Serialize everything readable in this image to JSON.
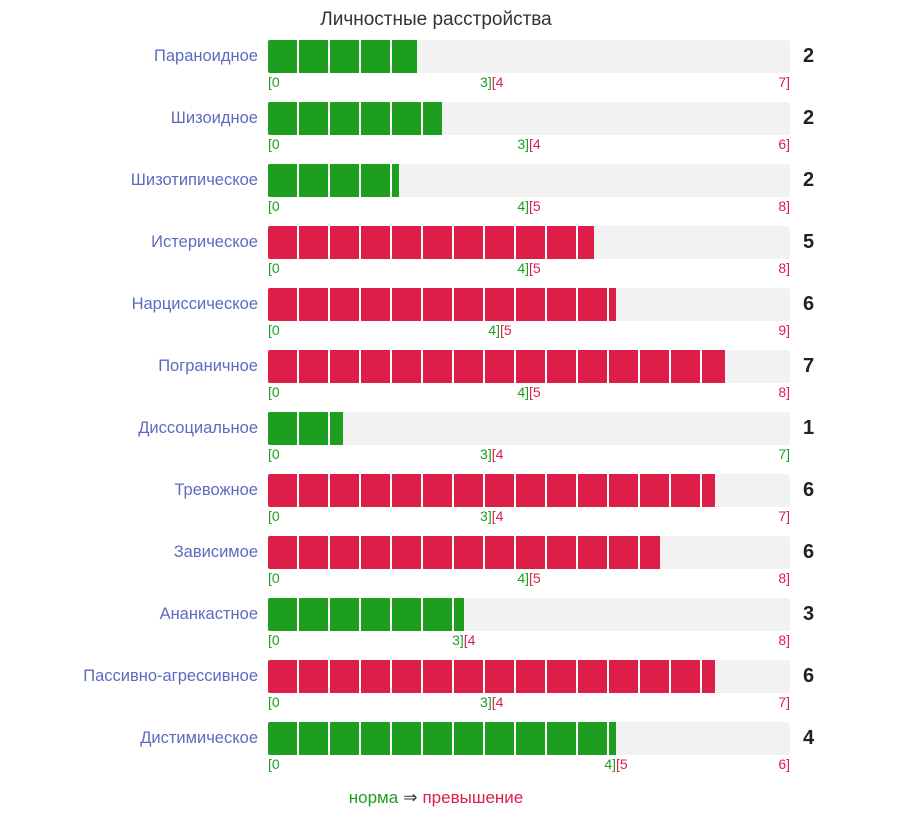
{
  "title": "Личностные расстройства",
  "legend": {
    "norm_label": "норма",
    "arrow": "⇒",
    "exceed_label": "превышение"
  },
  "colors": {
    "norm": "#1e9e1e",
    "exceed": "#dc1e48",
    "label": "#5c6bc0",
    "track": "#f2f2f2",
    "score": "#212121",
    "title": "#333333"
  },
  "rows": [
    {
      "label": "Параноидное",
      "score": 2,
      "max": 7,
      "norm_end": 3,
      "exceed_start": 4,
      "zone": "norm",
      "scale_min_label": "[0",
      "scale_norm_label": "3]",
      "scale_exceed_label": "[4",
      "scale_max_label": "7]",
      "scale_max_color": "exceed"
    },
    {
      "label": "Шизоидное",
      "score": 2,
      "max": 6,
      "norm_end": 3,
      "exceed_start": 4,
      "zone": "norm",
      "scale_min_label": "[0",
      "scale_norm_label": "3]",
      "scale_exceed_label": "[4",
      "scale_max_label": "6]",
      "scale_max_color": "exceed"
    },
    {
      "label": "Шизотипическое",
      "score": 2,
      "max": 8,
      "norm_end": 4,
      "exceed_start": 5,
      "zone": "norm",
      "scale_min_label": "[0",
      "scale_norm_label": "4]",
      "scale_exceed_label": "[5",
      "scale_max_label": "8]",
      "scale_max_color": "exceed"
    },
    {
      "label": "Истерическое",
      "score": 5,
      "max": 8,
      "norm_end": 4,
      "exceed_start": 5,
      "zone": "exceed",
      "scale_min_label": "[0",
      "scale_norm_label": "4]",
      "scale_exceed_label": "[5",
      "scale_max_label": "8]",
      "scale_max_color": "exceed"
    },
    {
      "label": "Нарциссическое",
      "score": 6,
      "max": 9,
      "norm_end": 4,
      "exceed_start": 5,
      "zone": "exceed",
      "scale_min_label": "[0",
      "scale_norm_label": "4]",
      "scale_exceed_label": "[5",
      "scale_max_label": "9]",
      "scale_max_color": "exceed"
    },
    {
      "label": "Пограничное",
      "score": 7,
      "max": 8,
      "norm_end": 4,
      "exceed_start": 5,
      "zone": "exceed",
      "scale_min_label": "[0",
      "scale_norm_label": "4]",
      "scale_exceed_label": "[5",
      "scale_max_label": "8]",
      "scale_max_color": "exceed"
    },
    {
      "label": "Диссоциальное",
      "score": 1,
      "max": 7,
      "norm_end": 3,
      "exceed_start": 4,
      "zone": "norm",
      "scale_min_label": "[0",
      "scale_norm_label": "3]",
      "scale_exceed_label": "[4",
      "scale_max_label": "7]",
      "scale_max_color": "norm"
    },
    {
      "label": "Тревожное",
      "score": 6,
      "max": 7,
      "norm_end": 3,
      "exceed_start": 4,
      "zone": "exceed",
      "scale_min_label": "[0",
      "scale_norm_label": "3]",
      "scale_exceed_label": "[4",
      "scale_max_label": "7]",
      "scale_max_color": "exceed"
    },
    {
      "label": "Зависимое",
      "score": 6,
      "max": 8,
      "norm_end": 4,
      "exceed_start": 5,
      "zone": "exceed",
      "scale_min_label": "[0",
      "scale_norm_label": "4]",
      "scale_exceed_label": "[5",
      "scale_max_label": "8]",
      "scale_max_color": "exceed"
    },
    {
      "label": "Ананкастное",
      "score": 3,
      "max": 8,
      "norm_end": 3,
      "exceed_start": 4,
      "zone": "norm",
      "scale_min_label": "[0",
      "scale_norm_label": "3]",
      "scale_exceed_label": "[4",
      "scale_max_label": "8]",
      "scale_max_color": "exceed"
    },
    {
      "label": "Пассивно-агрессивное",
      "score": 6,
      "max": 7,
      "norm_end": 3,
      "exceed_start": 4,
      "zone": "exceed",
      "scale_min_label": "[0",
      "scale_norm_label": "3]",
      "scale_exceed_label": "[4",
      "scale_max_label": "7]",
      "scale_max_color": "exceed"
    },
    {
      "label": "Дистимическое",
      "score": 4,
      "max": 6,
      "norm_end": 4,
      "exceed_start": 5,
      "zone": "norm",
      "scale_min_label": "[0",
      "scale_norm_label": "4]",
      "scale_exceed_label": "[5",
      "scale_max_label": "6]",
      "scale_max_color": "exceed"
    }
  ],
  "chart_data": {
    "type": "bar",
    "orientation": "horizontal",
    "title": "Личностные расстройства",
    "categories": [
      "Параноидное",
      "Шизоидное",
      "Шизотипическое",
      "Истерическое",
      "Нарциссическое",
      "Пограничное",
      "Диссоциальное",
      "Тревожное",
      "Зависимое",
      "Ананкастное",
      "Пассивно-агрессивное",
      "Дистимическое"
    ],
    "values": [
      2,
      2,
      2,
      5,
      6,
      7,
      1,
      6,
      6,
      3,
      6,
      4
    ],
    "axis_ranges": [
      [
        0,
        7
      ],
      [
        0,
        6
      ],
      [
        0,
        8
      ],
      [
        0,
        8
      ],
      [
        0,
        9
      ],
      [
        0,
        8
      ],
      [
        0,
        7
      ],
      [
        0,
        7
      ],
      [
        0,
        8
      ],
      [
        0,
        8
      ],
      [
        0,
        7
      ],
      [
        0,
        6
      ]
    ],
    "norm_max": [
      3,
      3,
      4,
      4,
      4,
      4,
      3,
      3,
      4,
      3,
      3,
      4
    ],
    "value_zone": [
      "norm",
      "norm",
      "norm",
      "exceed",
      "exceed",
      "exceed",
      "norm",
      "exceed",
      "exceed",
      "norm",
      "exceed",
      "norm"
    ],
    "legend": [
      "норма",
      "превышение"
    ],
    "grid": false,
    "xlabel": "",
    "ylabel": ""
  }
}
